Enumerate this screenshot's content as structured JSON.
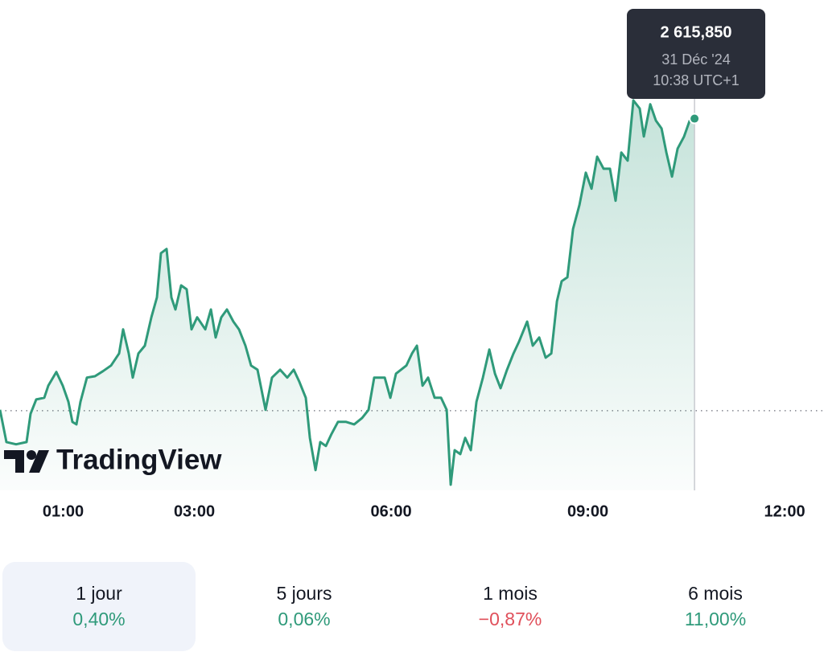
{
  "chart_data": {
    "type": "line",
    "color": "#2f9a7a",
    "x": [
      0.037,
      0.135,
      0.282,
      0.442,
      0.503,
      0.589,
      0.712,
      0.773,
      0.896,
      0.994,
      1.08,
      1.141,
      1.202,
      1.264,
      1.362,
      1.485,
      1.607,
      1.73,
      1.853,
      1.914,
      2.0,
      2.061,
      2.147,
      2.245,
      2.344,
      2.429,
      2.491,
      2.577,
      2.65,
      2.712,
      2.798,
      2.883,
      2.957,
      3.043,
      3.166,
      3.252,
      3.325,
      3.411,
      3.497,
      3.595,
      3.681,
      3.779,
      3.865,
      3.963,
      4.086,
      4.184,
      4.307,
      4.417,
      4.515,
      4.601,
      4.699,
      4.761,
      4.847,
      4.92,
      5.006,
      5.092,
      5.19,
      5.313,
      5.436,
      5.558,
      5.656,
      5.742,
      5.902,
      5.988,
      6.074,
      6.233,
      6.319,
      6.393,
      6.479,
      6.564,
      6.663,
      6.761,
      6.847,
      6.908,
      6.969,
      7.055,
      7.129,
      7.215,
      7.301,
      7.399,
      7.497,
      7.583,
      7.669,
      7.767,
      7.865,
      7.951,
      8.074,
      8.16,
      8.258,
      8.356,
      8.442,
      8.528,
      8.601,
      8.687,
      8.773,
      8.871,
      8.969,
      9.055,
      9.141,
      9.239,
      9.337,
      9.423,
      9.509,
      9.607,
      9.693,
      9.791,
      9.853,
      9.951,
      10.037,
      10.123,
      10.196,
      10.282,
      10.368,
      10.466,
      10.552,
      10.626
    ],
    "values": [
      2605.46,
      2604.31,
      2604.23,
      2604.31,
      2605.32,
      2605.83,
      2605.89,
      2606.32,
      2606.81,
      2606.32,
      2605.75,
      2605.03,
      2604.94,
      2605.75,
      2606.61,
      2606.66,
      2606.84,
      2607.04,
      2607.47,
      2608.33,
      2607.47,
      2606.61,
      2607.47,
      2607.75,
      2608.76,
      2609.47,
      2611.05,
      2611.2,
      2609.47,
      2609.04,
      2609.9,
      2609.76,
      2608.33,
      2608.76,
      2608.33,
      2609.04,
      2608.04,
      2608.76,
      2609.04,
      2608.61,
      2608.33,
      2607.75,
      2607.04,
      2606.89,
      2605.46,
      2606.61,
      2606.89,
      2606.61,
      2606.89,
      2606.46,
      2605.89,
      2604.46,
      2603.31,
      2604.31,
      2604.17,
      2604.6,
      2605.03,
      2605.03,
      2604.94,
      2605.17,
      2605.46,
      2606.61,
      2606.61,
      2605.89,
      2606.75,
      2607.04,
      2607.47,
      2607.75,
      2606.32,
      2606.61,
      2605.89,
      2605.89,
      2605.46,
      2602.79,
      2604.02,
      2603.88,
      2604.46,
      2604.02,
      2605.75,
      2606.61,
      2607.61,
      2606.75,
      2606.23,
      2606.89,
      2607.47,
      2607.9,
      2608.61,
      2607.75,
      2608.04,
      2607.32,
      2607.47,
      2609.33,
      2610.05,
      2610.19,
      2611.91,
      2612.77,
      2613.92,
      2613.35,
      2614.49,
      2614.06,
      2614.06,
      2612.92,
      2614.64,
      2614.35,
      2616.5,
      2616.21,
      2615.21,
      2616.36,
      2615.78,
      2615.5,
      2614.64,
      2613.78,
      2614.78,
      2615.21,
      2615.78,
      2615.85
    ],
    "xlim": [
      0,
      12.6
    ],
    "ylim": [
      2602.5,
      2617.5
    ],
    "xticks": [
      {
        "value": 1,
        "label": "01:00"
      },
      {
        "value": 3,
        "label": "03:00"
      },
      {
        "value": 6,
        "label": "06:00"
      },
      {
        "value": 9,
        "label": "09:00"
      },
      {
        "value": 12,
        "label": "12:00"
      }
    ],
    "previous_close": 2605.43,
    "tooltip": {
      "value_label": "2 615,850",
      "date": "31 Déc '24",
      "time": "10:38 UTC+1"
    },
    "logo": "TradingView",
    "periods": [
      {
        "label": "1 jour",
        "change": "0,40%",
        "color": "#2f9a7a",
        "selected": true
      },
      {
        "label": "5 jours",
        "change": "0,06%",
        "color": "#2f9a7a",
        "selected": false
      },
      {
        "label": "1 mois",
        "change": "−0,87%",
        "color": "#e0505b",
        "selected": false
      },
      {
        "label": "6 mois",
        "change": "11,00%",
        "color": "#2f9a7a",
        "selected": false
      }
    ]
  }
}
